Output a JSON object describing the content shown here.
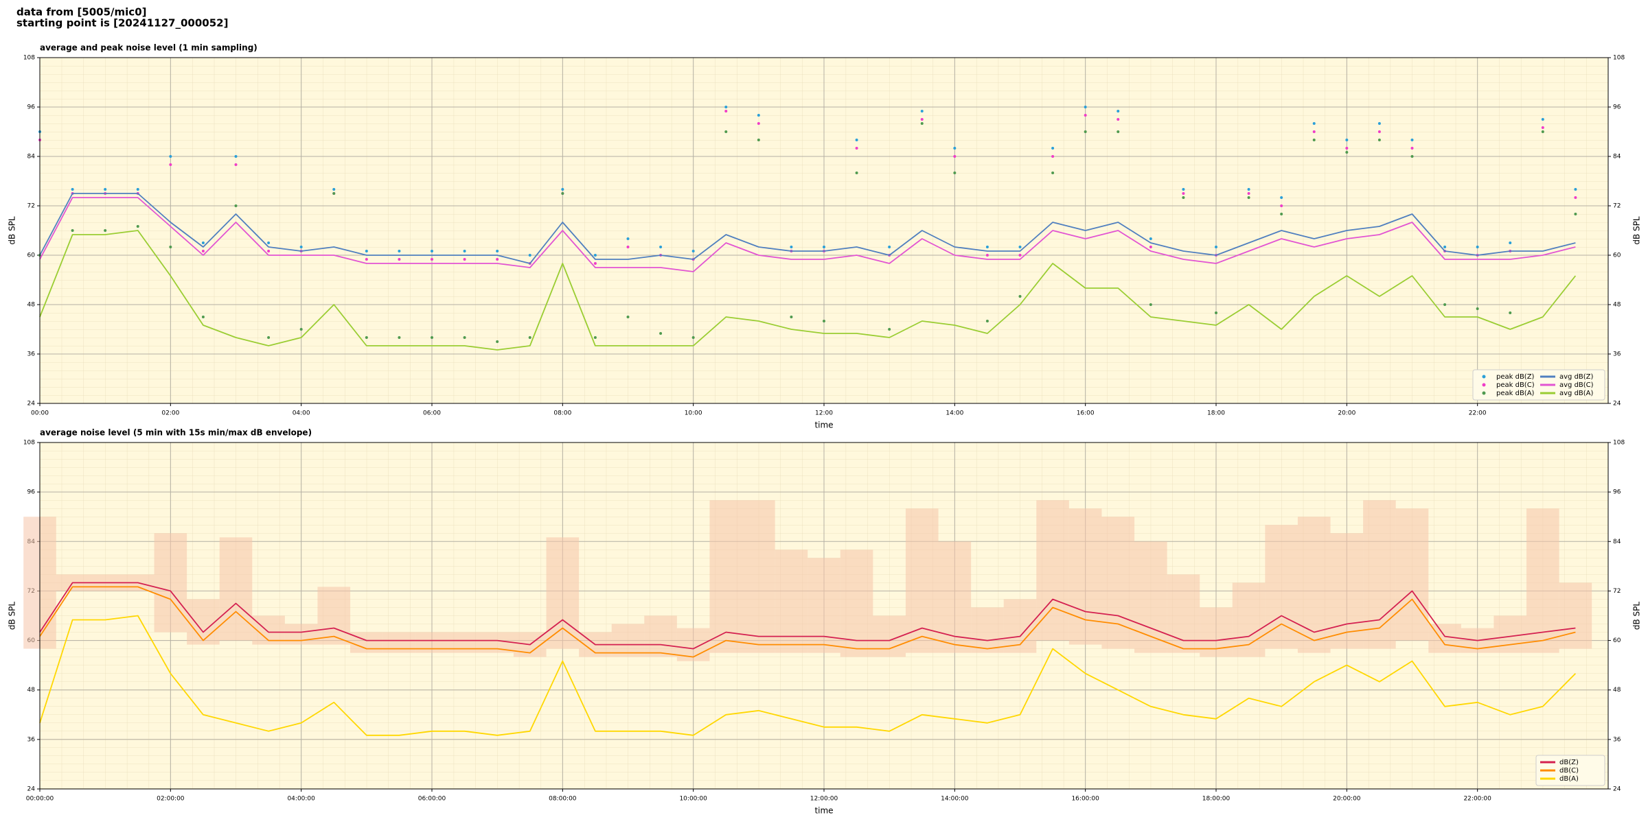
{
  "header": {
    "line1": "data from [5005/mic0]",
    "line2": "starting point is [20241127_000052]"
  },
  "chart_data": [
    {
      "type": "line",
      "title": "average and peak noise level (1 min sampling)",
      "xlabel": "time",
      "ylabel": "dB SPL",
      "x": [
        0,
        0.5,
        1,
        1.5,
        2,
        2.5,
        3,
        3.5,
        4,
        4.5,
        5,
        5.5,
        6,
        6.5,
        7,
        7.5,
        8,
        8.5,
        9,
        9.5,
        10,
        10.5,
        11,
        11.5,
        12,
        12.5,
        13,
        13.5,
        14,
        14.5,
        15,
        15.5,
        16,
        16.5,
        17,
        17.5,
        18,
        18.5,
        19,
        19.5,
        20,
        20.5,
        21,
        21.5,
        22,
        22.5,
        23,
        23.5
      ],
      "xlim": [
        0,
        24
      ],
      "xticks": [
        {
          "value": 0,
          "label": "00:00"
        },
        {
          "value": 2,
          "label": "02:00"
        },
        {
          "value": 4,
          "label": "04:00"
        },
        {
          "value": 6,
          "label": "06:00"
        },
        {
          "value": 8,
          "label": "08:00"
        },
        {
          "value": 10,
          "label": "10:00"
        },
        {
          "value": 12,
          "label": "12:00"
        },
        {
          "value": 14,
          "label": "14:00"
        },
        {
          "value": 16,
          "label": "16:00"
        },
        {
          "value": 18,
          "label": "18:00"
        },
        {
          "value": 20,
          "label": "20:00"
        },
        {
          "value": 22,
          "label": "22:00"
        }
      ],
      "ylim": [
        24,
        108
      ],
      "yticks": [
        24,
        36,
        48,
        60,
        72,
        84,
        96,
        108
      ],
      "grid": true,
      "legend": "lower right",
      "background": "#fff8dc",
      "series": [
        {
          "name": "peak dB(Z)",
          "type": "scatter",
          "color": "#2a9fd8",
          "values": [
            90,
            76,
            76,
            76,
            84,
            63,
            84,
            63,
            62,
            76,
            61,
            61,
            61,
            61,
            61,
            60,
            76,
            60,
            64,
            62,
            61,
            96,
            94,
            62,
            62,
            88,
            62,
            95,
            86,
            62,
            62,
            86,
            96,
            95,
            64,
            76,
            62,
            76,
            74,
            92,
            88,
            92,
            88,
            62,
            62,
            63,
            93,
            76
          ]
        },
        {
          "name": "peak dB(C)",
          "type": "scatter",
          "color": "#f03cc8",
          "values": [
            88,
            75,
            75,
            75,
            82,
            61,
            82,
            61,
            61,
            75,
            59,
            59,
            59,
            59,
            59,
            58,
            75,
            58,
            62,
            60,
            59,
            95,
            92,
            61,
            61,
            86,
            60,
            93,
            84,
            60,
            60,
            84,
            94,
            93,
            62,
            75,
            60,
            75,
            72,
            90,
            86,
            90,
            86,
            61,
            60,
            61,
            91,
            74
          ]
        },
        {
          "name": "peak dB(A)",
          "type": "scatter",
          "color": "#4f9a4f",
          "values": [
            60,
            66,
            66,
            67,
            62,
            45,
            72,
            40,
            42,
            75,
            40,
            40,
            40,
            40,
            39,
            40,
            75,
            40,
            45,
            41,
            40,
            90,
            88,
            45,
            44,
            80,
            42,
            92,
            80,
            44,
            50,
            80,
            90,
            90,
            48,
            74,
            46,
            74,
            70,
            88,
            85,
            88,
            84,
            48,
            47,
            46,
            90,
            70
          ]
        },
        {
          "name": "avg dB(Z)",
          "type": "line",
          "color": "#4f7fbf",
          "values": [
            60,
            75,
            75,
            75,
            68,
            62,
            70,
            62,
            61,
            62,
            60,
            60,
            60,
            60,
            60,
            58,
            68,
            59,
            59,
            60,
            59,
            65,
            62,
            61,
            61,
            62,
            60,
            66,
            62,
            61,
            61,
            68,
            66,
            68,
            63,
            61,
            60,
            63,
            66,
            64,
            66,
            67,
            70,
            61,
            60,
            61,
            61,
            63
          ]
        },
        {
          "name": "avg dB(C)",
          "type": "line",
          "color": "#e254d2",
          "values": [
            59,
            74,
            74,
            74,
            67,
            60,
            68,
            60,
            60,
            60,
            58,
            58,
            58,
            58,
            58,
            57,
            66,
            57,
            57,
            57,
            56,
            63,
            60,
            59,
            59,
            60,
            58,
            64,
            60,
            59,
            59,
            66,
            64,
            66,
            61,
            59,
            58,
            61,
            64,
            62,
            64,
            65,
            68,
            59,
            59,
            59,
            60,
            62
          ]
        },
        {
          "name": "avg dB(A)",
          "type": "line",
          "color": "#9acd32",
          "values": [
            45,
            65,
            65,
            66,
            55,
            43,
            40,
            38,
            40,
            48,
            38,
            38,
            38,
            38,
            37,
            38,
            58,
            38,
            38,
            38,
            38,
            45,
            44,
            42,
            41,
            41,
            40,
            44,
            43,
            41,
            48,
            58,
            52,
            52,
            45,
            44,
            43,
            48,
            42,
            50,
            55,
            50,
            55,
            45,
            45,
            42,
            45,
            55
          ]
        }
      ]
    },
    {
      "type": "line",
      "title": "average noise level (5 min with 15s min/max dB envelope)",
      "xlabel": "time",
      "ylabel": "dB SPL",
      "x": [
        0,
        0.5,
        1,
        1.5,
        2,
        2.5,
        3,
        3.5,
        4,
        4.5,
        5,
        5.5,
        6,
        6.5,
        7,
        7.5,
        8,
        8.5,
        9,
        9.5,
        10,
        10.5,
        11,
        11.5,
        12,
        12.5,
        13,
        13.5,
        14,
        14.5,
        15,
        15.5,
        16,
        16.5,
        17,
        17.5,
        18,
        18.5,
        19,
        19.5,
        20,
        20.5,
        21,
        21.5,
        22,
        22.5,
        23,
        23.5
      ],
      "xlim": [
        0,
        24
      ],
      "xticks": [
        {
          "value": 0,
          "label": "00:00:00"
        },
        {
          "value": 2,
          "label": "02:00:00"
        },
        {
          "value": 4,
          "label": "04:00:00"
        },
        {
          "value": 6,
          "label": "06:00:00"
        },
        {
          "value": 8,
          "label": "08:00:00"
        },
        {
          "value": 10,
          "label": "10:00:00"
        },
        {
          "value": 12,
          "label": "12:00:00"
        },
        {
          "value": 14,
          "label": "14:00:00"
        },
        {
          "value": 16,
          "label": "16:00:00"
        },
        {
          "value": 18,
          "label": "18:00:00"
        },
        {
          "value": 20,
          "label": "20:00:00"
        },
        {
          "value": 22,
          "label": "22:00:00"
        }
      ],
      "ylim": [
        24,
        108
      ],
      "yticks": [
        24,
        36,
        48,
        60,
        72,
        84,
        96,
        108
      ],
      "grid": true,
      "legend": "lower right",
      "background": "#fff8dc",
      "envelope": {
        "color": "#f5c4aa",
        "upper": [
          90,
          76,
          76,
          76,
          86,
          70,
          85,
          66,
          64,
          73,
          62,
          62,
          62,
          62,
          62,
          62,
          85,
          62,
          64,
          66,
          63,
          94,
          94,
          82,
          80,
          82,
          66,
          92,
          84,
          68,
          70,
          94,
          92,
          90,
          84,
          76,
          68,
          74,
          88,
          90,
          86,
          94,
          92,
          64,
          63,
          66,
          92,
          74
        ],
        "lower": [
          58,
          72,
          72,
          72,
          62,
          59,
          60,
          59,
          59,
          59,
          57,
          57,
          57,
          57,
          57,
          56,
          58,
          56,
          56,
          56,
          55,
          57,
          57,
          57,
          57,
          56,
          56,
          57,
          57,
          57,
          57,
          60,
          59,
          58,
          57,
          57,
          56,
          56,
          58,
          57,
          58,
          58,
          60,
          57,
          57,
          57,
          57,
          58
        ]
      },
      "series": [
        {
          "name": "dB(Z)",
          "type": "line",
          "color": "#d42050",
          "values": [
            62,
            74,
            74,
            74,
            72,
            62,
            69,
            62,
            62,
            63,
            60,
            60,
            60,
            60,
            60,
            59,
            65,
            59,
            59,
            59,
            58,
            62,
            61,
            61,
            61,
            60,
            60,
            63,
            61,
            60,
            61,
            70,
            67,
            66,
            63,
            60,
            60,
            61,
            66,
            62,
            64,
            65,
            72,
            61,
            60,
            61,
            62,
            63
          ]
        },
        {
          "name": "dB(C)",
          "type": "line",
          "color": "#ff8c00",
          "values": [
            61,
            73,
            73,
            73,
            70,
            60,
            67,
            60,
            60,
            61,
            58,
            58,
            58,
            58,
            58,
            57,
            63,
            57,
            57,
            57,
            56,
            60,
            59,
            59,
            59,
            58,
            58,
            61,
            59,
            58,
            59,
            68,
            65,
            64,
            61,
            58,
            58,
            59,
            64,
            60,
            62,
            63,
            70,
            59,
            58,
            59,
            60,
            62
          ]
        },
        {
          "name": "dB(A)",
          "type": "line",
          "color": "#ffd700",
          "values": [
            40,
            65,
            65,
            66,
            52,
            42,
            40,
            38,
            40,
            45,
            37,
            37,
            38,
            38,
            37,
            38,
            55,
            38,
            38,
            38,
            37,
            42,
            43,
            41,
            39,
            39,
            38,
            42,
            41,
            40,
            42,
            58,
            52,
            48,
            44,
            42,
            41,
            46,
            44,
            50,
            54,
            50,
            55,
            44,
            45,
            42,
            44,
            52
          ]
        }
      ]
    }
  ]
}
